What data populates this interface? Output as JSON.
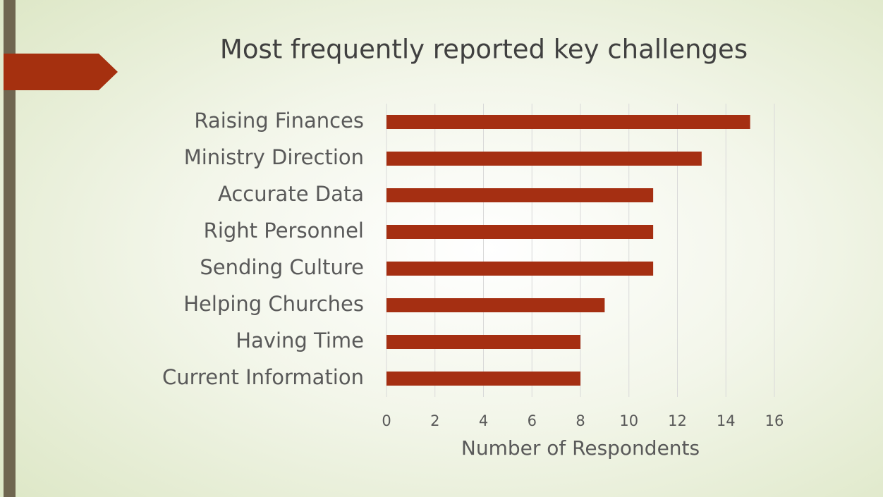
{
  "chart_data": {
    "type": "bar",
    "orientation": "horizontal",
    "title": "Most frequently reported key challenges",
    "categories": [
      "Raising Finances",
      "Ministry Direction",
      "Accurate Data",
      "Right Personnel",
      "Sending Culture",
      "Helping Churches",
      "Having Time",
      "Current Information"
    ],
    "values": [
      15,
      13,
      11,
      11,
      11,
      9,
      8,
      8
    ],
    "color": "#a52f12",
    "xlabel": "Number of Respondents",
    "xlim": [
      0,
      16
    ],
    "xticks": [
      0,
      2,
      4,
      6,
      8,
      10,
      12,
      14,
      16
    ],
    "grid": true
  }
}
